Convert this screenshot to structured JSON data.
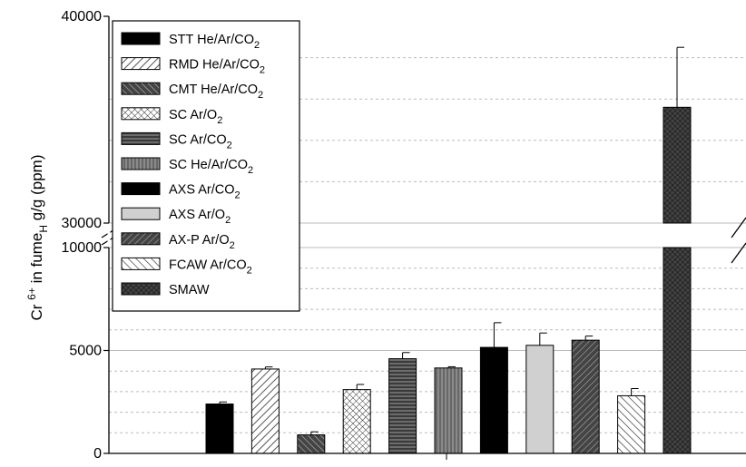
{
  "chart_data": {
    "type": "bar",
    "ylabel": {
      "prefix": "Cr ",
      "superscript": "6+",
      "middle": " in fume",
      "subscript": "H",
      "suffix": "  g/g (ppm)"
    },
    "y_ticks": [
      "0",
      "5000",
      "10000",
      "30000",
      "40000"
    ],
    "axis_break": {
      "lower_max": 10000,
      "upper_min": 30000,
      "upper_max": 40000
    },
    "grid": "dotted",
    "legend_position": "top-left",
    "series": [
      {
        "name": "STT He/Ar/CO2",
        "legend": {
          "main": "STT He/Ar/CO",
          "sub": "2"
        },
        "value": 2400,
        "error": 100,
        "fill": "solid-black"
      },
      {
        "name": "RMD He/Ar/CO2",
        "legend": {
          "main": "RMD He/Ar/CO",
          "sub": "2"
        },
        "value": 4100,
        "error": 100,
        "fill": "diag-light"
      },
      {
        "name": "CMT He/Ar/CO2",
        "legend": {
          "main": "CMT He/Ar/CO",
          "sub": "2"
        },
        "value": 900,
        "error": 150,
        "fill": "diag-dark"
      },
      {
        "name": "SC Ar/O2",
        "legend": {
          "main": "SC Ar/O",
          "sub": "2"
        },
        "value": 3100,
        "error": 250,
        "fill": "crosshatch"
      },
      {
        "name": "SC Ar/CO2",
        "legend": {
          "main": "SC Ar/CO",
          "sub": "2"
        },
        "value": 4600,
        "error": 300,
        "fill": "horizontal"
      },
      {
        "name": "SC He/Ar/CO2",
        "legend": {
          "main": "SC He/Ar/CO",
          "sub": "2"
        },
        "value": 4150,
        "error": 60,
        "fill": "vertical"
      },
      {
        "name": "AXS Ar/CO2",
        "legend": {
          "main": "AXS Ar/CO",
          "sub": "2"
        },
        "value": 5150,
        "error": 1200,
        "fill": "solid-black"
      },
      {
        "name": "AXS Ar/O2",
        "legend": {
          "main": "AXS Ar/O",
          "sub": "2"
        },
        "value": 5250,
        "error": 600,
        "fill": "light-gray"
      },
      {
        "name": "AX-P Ar/O2",
        "legend": {
          "main": "AX-P Ar/O",
          "sub": "2"
        },
        "value": 5500,
        "error": 200,
        "fill": "diag-dark2"
      },
      {
        "name": "FCAW Ar/CO2",
        "legend": {
          "main": "FCAW Ar/CO",
          "sub": "2"
        },
        "value": 2800,
        "error": 350,
        "fill": "diag-back"
      },
      {
        "name": "SMAW",
        "legend": {
          "main": "SMAW",
          "sub": ""
        },
        "value": 35600,
        "error": 2900,
        "fill": "crosshatch-dark"
      }
    ]
  }
}
